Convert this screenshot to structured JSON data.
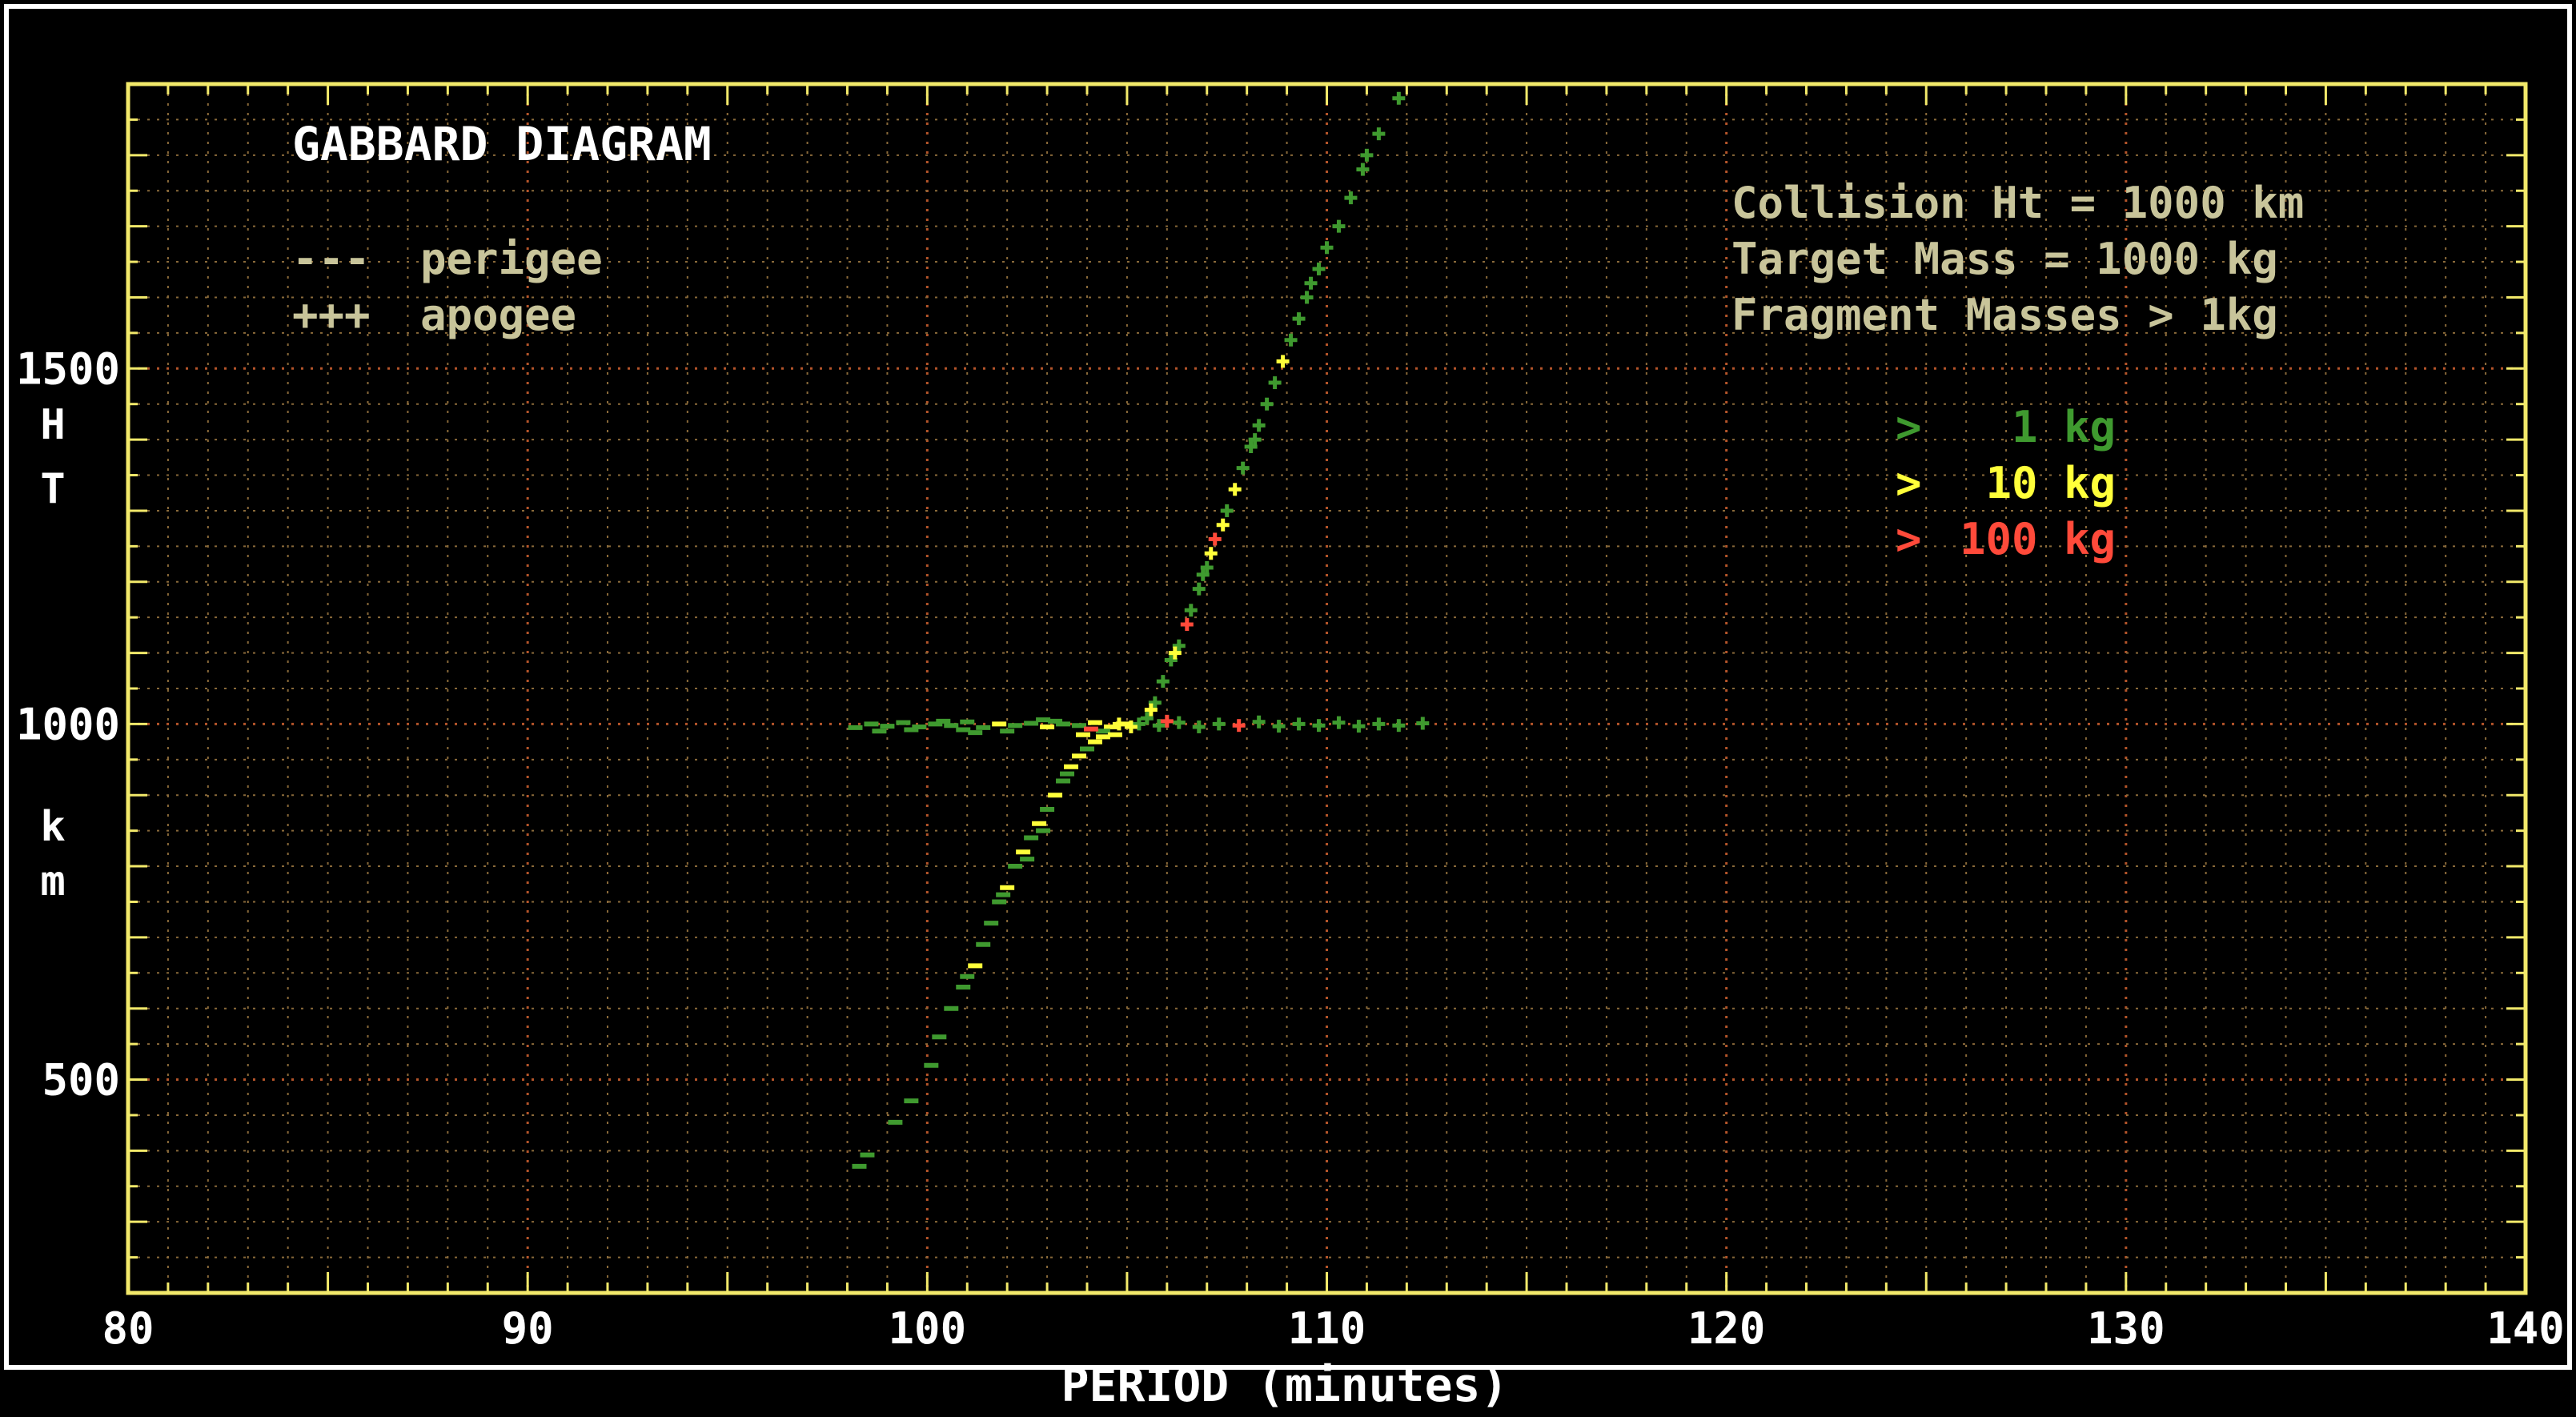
{
  "colors": {
    "background": "#000000",
    "frame": "#ffffff",
    "axis": "#f2e96a",
    "grid": "#8a6a3a",
    "grid_major": "#b5552a",
    "label": "#ffffff",
    "annotation": "#c8c49a",
    "green": "#3f9a2f",
    "yellow": "#ffff3a",
    "red": "#ff4a3a"
  },
  "chart_data": {
    "type": "scatter",
    "title": "GABBARD DIAGRAM",
    "xlabel": "PERIOD (minutes)",
    "ylabel": [
      "H",
      "T",
      "k",
      "m"
    ],
    "xlim": [
      80,
      140
    ],
    "ylim": [
      200,
      1900
    ],
    "x_ticks": [
      "80",
      "90",
      "100",
      "110",
      "120",
      "130",
      "140"
    ],
    "y_ticks": [
      "500",
      "1000",
      "1500"
    ],
    "grid": true,
    "style_legend": [
      {
        "symbol": "---",
        "label": "perigee"
      },
      {
        "symbol": "+++",
        "label": "apogee"
      }
    ],
    "annotation": [
      "Collision Ht = 1000 km",
      "Target Mass = 1000 kg",
      "Fragment Masses > 1kg"
    ],
    "mass_legend": [
      {
        "symbol": ">",
        "label": "  1 kg",
        "color": "#3f9a2f"
      },
      {
        "symbol": ">",
        "label": " 10 kg",
        "color": "#ffff3a"
      },
      {
        "symbol": ">",
        "label": "100 kg",
        "color": "#ff4a3a"
      }
    ],
    "series": [
      {
        "name": "perigee",
        "marker": "dash",
        "points": [
          [
            98.2,
            995,
            "g"
          ],
          [
            98.6,
            1000,
            "g"
          ],
          [
            99.0,
            997,
            "g"
          ],
          [
            99.4,
            1002,
            "g"
          ],
          [
            99.8,
            996,
            "g"
          ],
          [
            100.2,
            1000,
            "g"
          ],
          [
            100.6,
            998,
            "g"
          ],
          [
            101.0,
            1003,
            "g"
          ],
          [
            101.4,
            995,
            "g"
          ],
          [
            101.8,
            1000,
            "y"
          ],
          [
            102.2,
            998,
            "g"
          ],
          [
            102.6,
            1001,
            "g"
          ],
          [
            103.0,
            996,
            "y"
          ],
          [
            103.4,
            1000,
            "g"
          ],
          [
            103.8,
            998,
            "g"
          ],
          [
            104.2,
            1002,
            "y"
          ],
          [
            104.6,
            996,
            "y"
          ],
          [
            104.9,
            1000,
            "y"
          ],
          [
            104.4,
            990,
            "g"
          ],
          [
            103.2,
            1004,
            "g"
          ],
          [
            102.0,
            990,
            "g"
          ],
          [
            100.9,
            992,
            "g"
          ],
          [
            99.6,
            992,
            "g"
          ],
          [
            98.8,
            990,
            "g"
          ],
          [
            103.9,
            985,
            "y"
          ],
          [
            104.7,
            985,
            "y"
          ],
          [
            104.1,
            993,
            "r"
          ],
          [
            101.2,
            988,
            "g"
          ],
          [
            102.9,
            1006,
            "g"
          ],
          [
            100.4,
            1004,
            "g"
          ],
          [
            98.5,
            394,
            "g"
          ],
          [
            98.3,
            378,
            "g"
          ],
          [
            99.2,
            440,
            "g"
          ],
          [
            99.6,
            470,
            "g"
          ],
          [
            100.1,
            520,
            "g"
          ],
          [
            100.3,
            560,
            "g"
          ],
          [
            100.6,
            600,
            "g"
          ],
          [
            100.9,
            630,
            "g"
          ],
          [
            101.2,
            660,
            "y"
          ],
          [
            101.4,
            690,
            "g"
          ],
          [
            101.6,
            720,
            "g"
          ],
          [
            101.8,
            750,
            "g"
          ],
          [
            102.0,
            770,
            "y"
          ],
          [
            102.2,
            800,
            "g"
          ],
          [
            102.4,
            820,
            "y"
          ],
          [
            102.6,
            840,
            "g"
          ],
          [
            102.8,
            860,
            "y"
          ],
          [
            103.0,
            880,
            "g"
          ],
          [
            103.2,
            900,
            "y"
          ],
          [
            103.4,
            920,
            "g"
          ],
          [
            103.6,
            940,
            "y"
          ],
          [
            103.8,
            955,
            "y"
          ],
          [
            104.0,
            965,
            "g"
          ],
          [
            104.2,
            975,
            "y"
          ],
          [
            102.9,
            850,
            "g"
          ],
          [
            102.5,
            810,
            "g"
          ],
          [
            101.9,
            760,
            "g"
          ],
          [
            103.5,
            930,
            "g"
          ],
          [
            104.4,
            982,
            "y"
          ],
          [
            101.0,
            645,
            "g"
          ]
        ]
      },
      {
        "name": "apogee",
        "marker": "plus",
        "points": [
          [
            105.3,
            1000,
            "g"
          ],
          [
            105.8,
            998,
            "g"
          ],
          [
            106.3,
            1002,
            "g"
          ],
          [
            106.8,
            996,
            "g"
          ],
          [
            107.3,
            1000,
            "g"
          ],
          [
            107.8,
            998,
            "r"
          ],
          [
            108.3,
            1003,
            "g"
          ],
          [
            108.8,
            997,
            "g"
          ],
          [
            109.3,
            1000,
            "g"
          ],
          [
            109.8,
            998,
            "g"
          ],
          [
            110.3,
            1002,
            "g"
          ],
          [
            110.8,
            997,
            "g"
          ],
          [
            111.3,
            1000,
            "g"
          ],
          [
            111.8,
            998,
            "g"
          ],
          [
            112.4,
            1001,
            "g"
          ],
          [
            105.1,
            996,
            "y"
          ],
          [
            106.0,
            1004,
            "r"
          ],
          [
            104.8,
            1000,
            "y"
          ],
          [
            105.5,
            1008,
            "g"
          ],
          [
            105.7,
            1030,
            "g"
          ],
          [
            105.9,
            1060,
            "g"
          ],
          [
            106.1,
            1090,
            "g"
          ],
          [
            106.3,
            1110,
            "g"
          ],
          [
            106.5,
            1140,
            "r"
          ],
          [
            106.6,
            1160,
            "g"
          ],
          [
            106.8,
            1190,
            "g"
          ],
          [
            106.9,
            1210,
            "g"
          ],
          [
            107.1,
            1240,
            "y"
          ],
          [
            107.2,
            1260,
            "r"
          ],
          [
            107.4,
            1280,
            "y"
          ],
          [
            107.5,
            1300,
            "g"
          ],
          [
            107.7,
            1330,
            "y"
          ],
          [
            107.9,
            1360,
            "g"
          ],
          [
            108.1,
            1390,
            "g"
          ],
          [
            108.3,
            1420,
            "g"
          ],
          [
            108.5,
            1450,
            "g"
          ],
          [
            108.7,
            1480,
            "g"
          ],
          [
            108.9,
            1510,
            "y"
          ],
          [
            109.1,
            1540,
            "g"
          ],
          [
            109.3,
            1570,
            "g"
          ],
          [
            109.5,
            1600,
            "g"
          ],
          [
            109.8,
            1640,
            "g"
          ],
          [
            110.0,
            1670,
            "g"
          ],
          [
            110.3,
            1700,
            "g"
          ],
          [
            110.6,
            1740,
            "g"
          ],
          [
            110.9,
            1780,
            "g"
          ],
          [
            111.3,
            1830,
            "g"
          ],
          [
            111.8,
            1880,
            "g"
          ],
          [
            112.2,
            1910,
            "g"
          ],
          [
            107.0,
            1220,
            "g"
          ],
          [
            108.2,
            1400,
            "g"
          ],
          [
            109.6,
            1620,
            "g"
          ],
          [
            111.0,
            1800,
            "g"
          ],
          [
            106.2,
            1100,
            "y"
          ],
          [
            105.6,
            1020,
            "y"
          ]
        ]
      }
    ]
  }
}
